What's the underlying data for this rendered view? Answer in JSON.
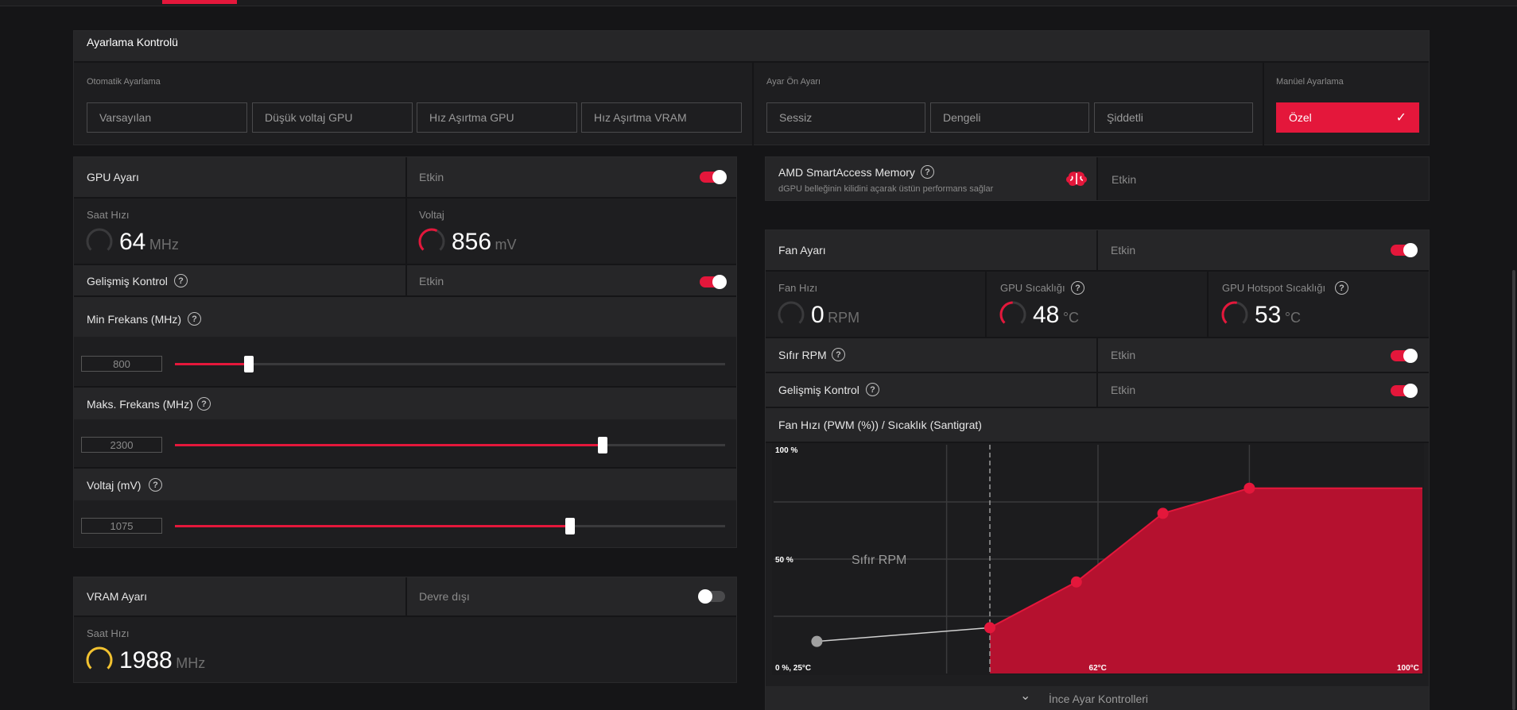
{
  "tuning_control": {
    "title": "Ayarlama Kontrolü",
    "auto_tuning": {
      "label": "Otomatik Ayarlama",
      "buttons": [
        "Varsayılan",
        "Düşük voltaj GPU",
        "Hız Aşırtma GPU",
        "Hız Aşırtma VRAM"
      ]
    },
    "preset": {
      "label": "Ayar Ön Ayarı",
      "buttons": [
        "Sessiz",
        "Dengeli",
        "Şiddetli"
      ]
    },
    "manual": {
      "label": "Manüel Ayarlama",
      "button": "Özel",
      "check": "✓"
    }
  },
  "gpu": {
    "title": "GPU Ayarı",
    "status": "Etkin",
    "enabled": true,
    "clock": {
      "label": "Saat Hızı",
      "value": "64",
      "unit": "MHz",
      "gauge_fraction": 0.0
    },
    "voltage": {
      "label": "Voltaj",
      "value": "856",
      "unit": "mV",
      "gauge_fraction": 0.55
    },
    "advanced": {
      "label": "Gelişmiş Kontrol",
      "status": "Etkin",
      "enabled": true,
      "help": "?"
    },
    "min_freq": {
      "label": "Min Frekans (MHz)",
      "value": "800",
      "fraction": 0.135,
      "help": "?"
    },
    "max_freq": {
      "label": "Maks. Frekans (MHz)",
      "value": "2300",
      "fraction": 0.778,
      "help": "?"
    },
    "voltage_slider": {
      "label": "Voltaj (mV)",
      "value": "1075",
      "fraction": 0.718,
      "help": "?"
    }
  },
  "vram": {
    "title": "VRAM Ayarı",
    "status": "Devre dışı",
    "enabled": false,
    "clock": {
      "label": "Saat Hızı",
      "value": "1988",
      "unit": "MHz",
      "gauge_fraction": 1.0
    }
  },
  "smart_access": {
    "title": "AMD SmartAccess Memory",
    "description": "dGPU belleğinin kilidini açarak üstün performans sağlar",
    "status": "Etkin",
    "help": "?"
  },
  "fan": {
    "title": "Fan Ayarı",
    "status": "Etkin",
    "enabled": true,
    "speed": {
      "label": "Fan Hızı",
      "value": "0",
      "unit": "RPM",
      "gauge_fraction": 0.0
    },
    "gpu_temp": {
      "label": "GPU Sıcaklığı",
      "value": "48",
      "unit": "°C",
      "gauge_fraction": 0.45,
      "help": "?"
    },
    "hotspot_temp": {
      "label": "GPU Hotspot Sıcaklığı",
      "value": "53",
      "unit": "°C",
      "gauge_fraction": 0.5,
      "help": "?"
    },
    "zero_rpm": {
      "label": "Sıfır RPM",
      "status": "Etkin",
      "enabled": true,
      "help": "?"
    },
    "advanced": {
      "label": "Gelişmiş Kontrol",
      "status": "Etkin",
      "enabled": true,
      "help": "?"
    },
    "curve_title": "Fan Hızı (PWM (%)) / Sıcaklık (Santigrat)",
    "fine_tune": "İnce Ayar Kontrolleri",
    "chevron": "⌄"
  },
  "colors": {
    "accent": "#e4173b",
    "accent_fill": "#b5112f",
    "yellow_gauge": "#f2c230"
  },
  "chart_data": {
    "type": "area",
    "title": "Fan Hızı (PWM (%)) / Sıcaklık (Santigrat)",
    "x_range": [
      25,
      100
    ],
    "y_range": [
      0,
      100
    ],
    "labels": {
      "y_top": "100 %",
      "y_mid": "50 %",
      "origin": "0 %, 25°C",
      "x_mid": "62°C",
      "x_max": "100°C",
      "zero_rpm": "Sıfır RPM"
    },
    "zero_rpm_threshold": 50,
    "zero_rpm_points": [
      {
        "temp": 30,
        "pwm": 14
      },
      {
        "temp": 50,
        "pwm": 20
      }
    ],
    "points": [
      {
        "temp": 50,
        "pwm": 20
      },
      {
        "temp": 60,
        "pwm": 40
      },
      {
        "temp": 70,
        "pwm": 70
      },
      {
        "temp": 80,
        "pwm": 81
      },
      {
        "temp": 100,
        "pwm": 81
      }
    ]
  }
}
